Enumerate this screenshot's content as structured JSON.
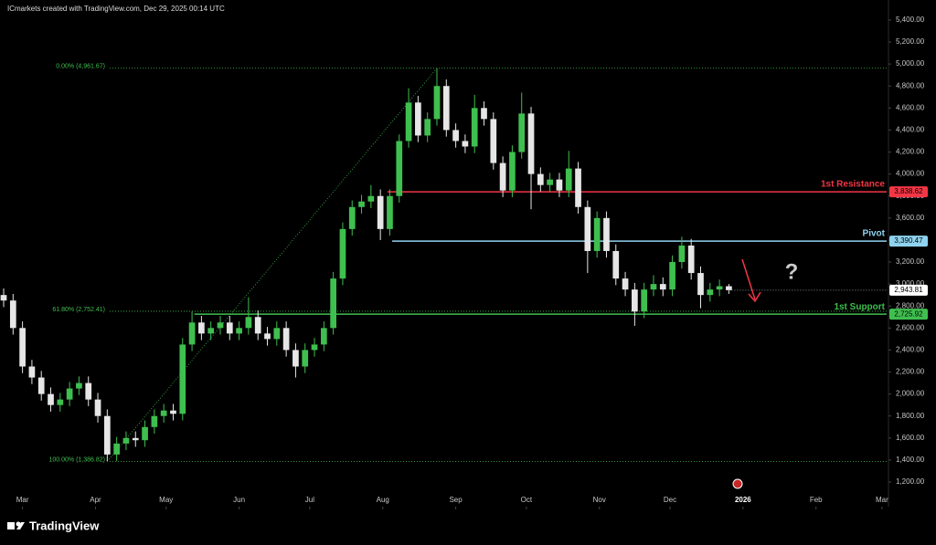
{
  "chart_data": {
    "type": "candlestick",
    "header": "ICmarkets created with TradingView.com, Dec 29, 2025 00:14 UTC",
    "brand": "TradingView",
    "up_color": "#3fbf4f",
    "down_color": "#e6e6e6",
    "xlim": [
      -8,
      367
    ],
    "xticks": [
      {
        "value": 0,
        "label": "Mar"
      },
      {
        "value": 31,
        "label": "Apr"
      },
      {
        "value": 61,
        "label": "May"
      },
      {
        "value": 92,
        "label": "Jun"
      },
      {
        "value": 122,
        "label": "Jul"
      },
      {
        "value": 153,
        "label": "Aug"
      },
      {
        "value": 184,
        "label": "Sep"
      },
      {
        "value": 214,
        "label": "Oct"
      },
      {
        "value": 245,
        "label": "Nov"
      },
      {
        "value": 275,
        "label": "Dec"
      },
      {
        "value": 306,
        "label": "2026"
      },
      {
        "value": 337,
        "label": "Feb"
      },
      {
        "value": 365,
        "label": "Mar"
      }
    ],
    "ylim": [
      976,
      5582
    ],
    "yticks": [
      {
        "value": 1200,
        "label": "1,200.00"
      },
      {
        "value": 1400,
        "label": "1,400.00"
      },
      {
        "value": 1600,
        "label": "1,600.00"
      },
      {
        "value": 1800,
        "label": "1,800.00"
      },
      {
        "value": 2000,
        "label": "2,000.00"
      },
      {
        "value": 2200,
        "label": "2,200.00"
      },
      {
        "value": 2400,
        "label": "2,400.00"
      },
      {
        "value": 2600,
        "label": "2,600.00"
      },
      {
        "value": 2800,
        "label": "2,800.00"
      },
      {
        "value": 3000,
        "label": "3,000.00"
      },
      {
        "value": 3200,
        "label": "3,200.00"
      },
      {
        "value": 3400,
        "label": "3,400.00"
      },
      {
        "value": 3600,
        "label": "3,600.00"
      },
      {
        "value": 3800,
        "label": "3,800.00"
      },
      {
        "value": 4000,
        "label": "4,000.00"
      },
      {
        "value": 4200,
        "label": "4,200.00"
      },
      {
        "value": 4400,
        "label": "4,400.00"
      },
      {
        "value": 4600,
        "label": "4,600.00"
      },
      {
        "value": 4800,
        "label": "4,800.00"
      },
      {
        "value": 5000,
        "label": "5,000.00"
      },
      {
        "value": 5200,
        "label": "5,200.00"
      },
      {
        "value": 5400,
        "label": "5,400.00"
      }
    ],
    "x": [
      -8,
      -4,
      0,
      4,
      8,
      12,
      16,
      20,
      24,
      28,
      32,
      36,
      40,
      44,
      48,
      52,
      56,
      60,
      64,
      68,
      72,
      76,
      80,
      84,
      88,
      92,
      96,
      100,
      104,
      108,
      112,
      116,
      120,
      124,
      128,
      132,
      136,
      140,
      144,
      148,
      152,
      156,
      160,
      164,
      168,
      172,
      176,
      180,
      184,
      188,
      192,
      196,
      200,
      204,
      208,
      212,
      216,
      220,
      224,
      228,
      232,
      236,
      240,
      244,
      248,
      252,
      256,
      260,
      264,
      268,
      272,
      276,
      280,
      284,
      288,
      292,
      296,
      300
    ],
    "open": [
      2900,
      2850,
      2600,
      2250,
      2150,
      2000,
      1900,
      1950,
      2050,
      2100,
      1950,
      1800,
      1450,
      1550,
      1600,
      1580,
      1700,
      1800,
      1850,
      1820,
      2450,
      2650,
      2550,
      2600,
      2650,
      2550,
      2600,
      2700,
      2550,
      2500,
      2600,
      2400,
      2250,
      2400,
      2450,
      2600,
      3050,
      3500,
      3700,
      3750,
      3800,
      3500,
      3800,
      4300,
      4650,
      4350,
      4500,
      4800,
      4400,
      4300,
      4250,
      4600,
      4500,
      4100,
      3850,
      4200,
      4550,
      4000,
      3900,
      3950,
      3850,
      4050,
      3700,
      3300,
      3600,
      3300,
      3050,
      2950,
      2750,
      2950,
      3000,
      2950,
      3200,
      3350,
      3100,
      2900,
      2950,
      2980
    ],
    "high": [
      2960,
      2910,
      2660,
      2310,
      2210,
      2060,
      2010,
      2110,
      2160,
      2160,
      2010,
      1860,
      1610,
      1660,
      1660,
      1760,
      1860,
      1910,
      1910,
      2510,
      2750,
      2710,
      2660,
      2710,
      2710,
      2660,
      2880,
      2760,
      2610,
      2660,
      2660,
      2460,
      2460,
      2510,
      2660,
      3110,
      3560,
      3760,
      3810,
      3900,
      3860,
      3860,
      4360,
      4780,
      4710,
      4560,
      4962,
      4860,
      4460,
      4360,
      4720,
      4660,
      4560,
      4160,
      4260,
      4740,
      4610,
      4060,
      4010,
      4010,
      4210,
      4110,
      3760,
      3660,
      3660,
      3360,
      3110,
      3010,
      3010,
      3080,
      3060,
      3260,
      3430,
      3410,
      3160,
      3010,
      3040,
      3000
    ],
    "low": [
      2790,
      2540,
      2190,
      2090,
      1940,
      1840,
      1840,
      1890,
      1990,
      1890,
      1740,
      1387,
      1390,
      1490,
      1520,
      1520,
      1640,
      1740,
      1760,
      1760,
      2390,
      2490,
      2490,
      2540,
      2490,
      2490,
      2540,
      2490,
      2440,
      2440,
      2340,
      2150,
      2190,
      2340,
      2390,
      2540,
      2990,
      3440,
      3640,
      3690,
      3400,
      3440,
      3740,
      4240,
      4290,
      4290,
      4440,
      4340,
      4240,
      4190,
      4190,
      4440,
      4040,
      3790,
      3790,
      4140,
      3680,
      3840,
      3840,
      3790,
      3790,
      3640,
      3100,
      3240,
      3240,
      2990,
      2890,
      2620,
      2690,
      2890,
      2890,
      2890,
      3140,
      3040,
      2780,
      2840,
      2890,
      2910
    ],
    "close": [
      2850,
      2600,
      2250,
      2150,
      2000,
      1900,
      1950,
      2050,
      2100,
      1950,
      1800,
      1450,
      1550,
      1600,
      1580,
      1700,
      1800,
      1850,
      1820,
      2450,
      2650,
      2550,
      2600,
      2650,
      2550,
      2600,
      2700,
      2550,
      2500,
      2600,
      2400,
      2250,
      2400,
      2450,
      2600,
      3050,
      3500,
      3700,
      3750,
      3800,
      3500,
      3800,
      4300,
      4650,
      4350,
      4500,
      4800,
      4400,
      4300,
      4250,
      4600,
      4500,
      4100,
      3850,
      4200,
      4550,
      4000,
      3900,
      3950,
      3850,
      4050,
      3700,
      3300,
      3600,
      3300,
      3050,
      2950,
      2750,
      2950,
      3000,
      2950,
      3200,
      3350,
      3100,
      2900,
      2950,
      2980,
      2943.81
    ],
    "last": {
      "value": 2943.81,
      "label": "2,943.81"
    },
    "fib": {
      "color": "#3fbf4f",
      "from_x": 36,
      "to_x": 176,
      "levels": [
        {
          "value": 4961.67,
          "label": "0.00% (4,961.67)"
        },
        {
          "value": 2752.41,
          "label": "61.80% (2,752.41)"
        },
        {
          "value": 1386.82,
          "label": "100.00% (1,386.82)"
        }
      ]
    },
    "levels": [
      {
        "name": "1st Resistance",
        "value": 3838.62,
        "value_label": "3,838.62",
        "color": "#f23645",
        "from_x": 155
      },
      {
        "name": "Pivot",
        "value": 3390.47,
        "value_label": "3,390.47",
        "color": "#8fd3f0",
        "from_x": 157
      },
      {
        "name": "1st Support",
        "value": 2725.92,
        "value_label": "2,725.92",
        "color": "#3fbf4f",
        "from_x": 73
      }
    ],
    "annotation": "?"
  }
}
